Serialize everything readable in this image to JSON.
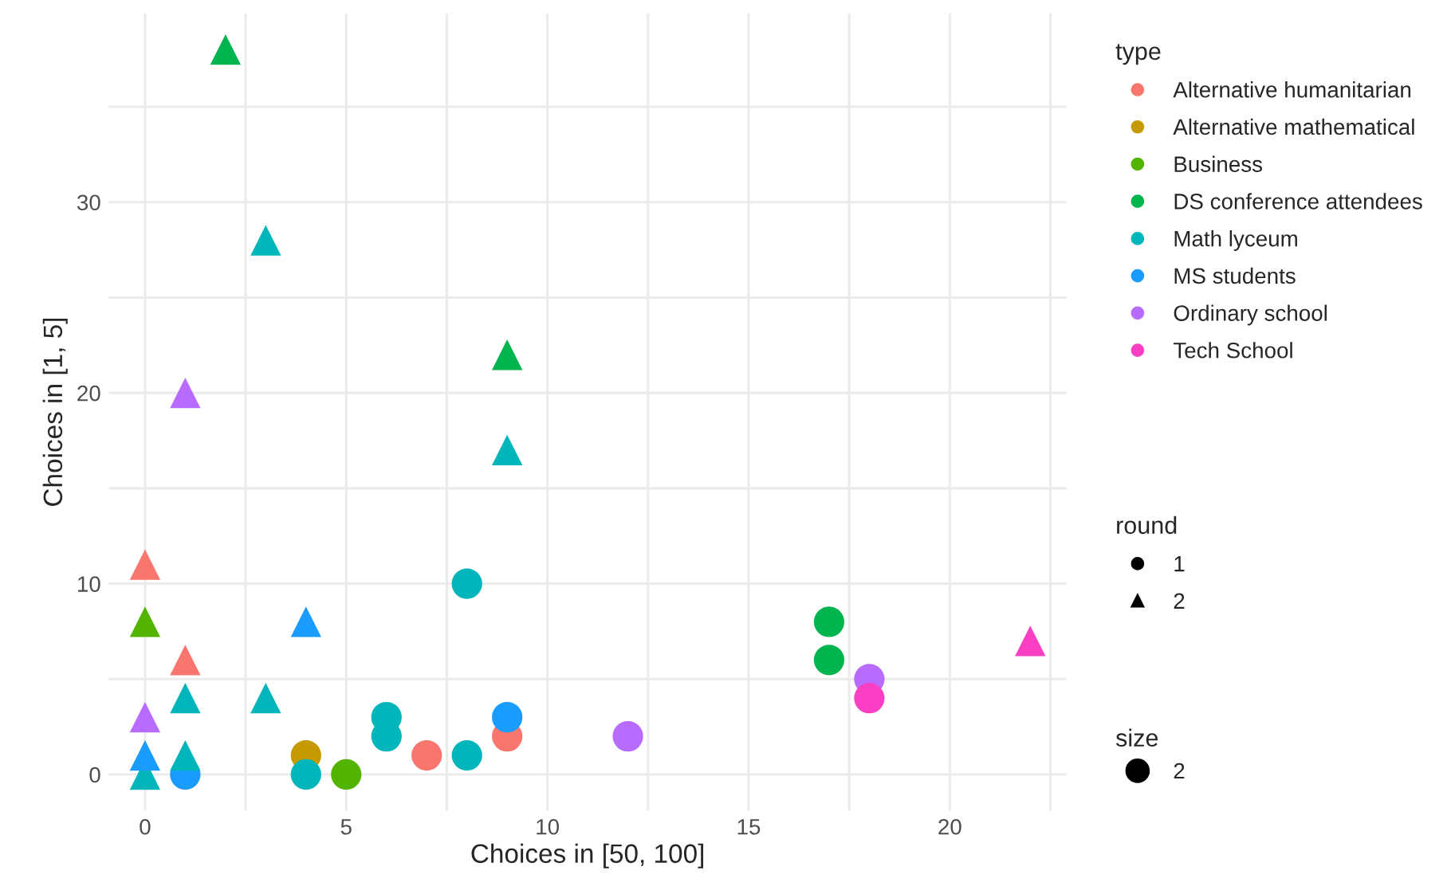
{
  "chart_data": {
    "type": "scatter",
    "xlabel": "Choices in [50, 100]",
    "ylabel": "Choices in [1, 5]",
    "legend_title": "type",
    "xlim": [
      -0.9,
      22.9
    ],
    "ylim": [
      -1.9,
      39.9
    ],
    "xticks": [
      0,
      {
        "value": 2.5,
        "label": null
      },
      5,
      {
        "value": 7.5,
        "label": null
      },
      10,
      {
        "value": 12.5,
        "label": null
      },
      15,
      {
        "value": 17.5,
        "label": null
      },
      20,
      {
        "value": 22.5,
        "label": null
      }
    ],
    "yticks": [
      0,
      {
        "value": 5,
        "label": null
      },
      10,
      {
        "value": 15,
        "label": null
      },
      20,
      {
        "value": 25,
        "label": null
      },
      30,
      {
        "value": 35,
        "label": null
      }
    ],
    "grid": true,
    "legend": "right",
    "annotations": [
      "round",
      "1",
      "2",
      "size",
      "2"
    ],
    "series": [
      {
        "name": "Alternative humanitarian",
        "color": "#f8766d",
        "marker": "circle",
        "x": [
          7,
          9
        ],
        "values": [
          1,
          2
        ]
      },
      {
        "color": "#f8766d",
        "marker": "triangle",
        "x": [
          0,
          1
        ],
        "values": [
          11,
          6
        ]
      },
      {
        "name": "Alternative mathematical",
        "color": "#c49a00",
        "marker": "circle",
        "x": [
          4
        ],
        "values": [
          1
        ]
      },
      {
        "name": "Business",
        "color": "#53b400",
        "marker": "circle",
        "x": [
          5
        ],
        "values": [
          0
        ]
      },
      {
        "color": "#53b400",
        "marker": "triangle",
        "x": [
          0
        ],
        "values": [
          8
        ]
      },
      {
        "name": "DS conference attendees",
        "color": "#00b44e",
        "marker": "circle",
        "x": [
          17,
          17
        ],
        "values": [
          8,
          6
        ]
      },
      {
        "color": "#00b44e",
        "marker": "triangle",
        "x": [
          2,
          9
        ],
        "values": [
          38,
          22
        ]
      },
      {
        "name": "Math lyceum",
        "color": "#00b6bb",
        "marker": "circle",
        "x": [
          8,
          6,
          6,
          8,
          4
        ],
        "values": [
          10,
          3,
          2,
          1,
          0
        ]
      },
      {
        "color": "#00b6bb",
        "marker": "triangle",
        "x": [
          3,
          9,
          1,
          3,
          1,
          0
        ],
        "values": [
          28,
          17,
          4,
          4,
          1,
          0
        ]
      },
      {
        "name": "MS students",
        "color": "#1a9cff",
        "marker": "circle",
        "x": [
          1,
          9
        ],
        "values": [
          0,
          3
        ]
      },
      {
        "color": "#1a9cff",
        "marker": "triangle",
        "x": [
          4,
          0
        ],
        "values": [
          8,
          1
        ]
      },
      {
        "name": "Ordinary school",
        "color": "#b86bff",
        "marker": "circle",
        "x": [
          12,
          18
        ],
        "values": [
          2,
          5
        ]
      },
      {
        "color": "#b86bff",
        "marker": "triangle",
        "x": [
          1,
          0
        ],
        "values": [
          20,
          3
        ]
      },
      {
        "name": "Tech School",
        "color": "#fb3fc5",
        "marker": "circle",
        "x": [
          18
        ],
        "values": [
          4
        ]
      },
      {
        "color": "#fb3fc5",
        "marker": "triangle",
        "x": [
          22
        ],
        "values": [
          7
        ]
      }
    ]
  }
}
